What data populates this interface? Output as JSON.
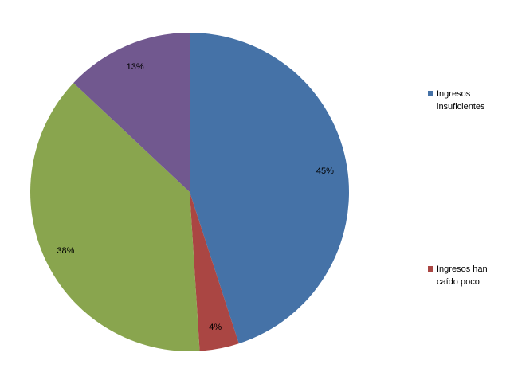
{
  "chart_data": {
    "type": "pie",
    "categories": [
      "Ingresos insuficientes",
      "Ingresos han caído poco",
      "",
      ""
    ],
    "values": [
      45,
      4,
      38,
      13
    ],
    "data_labels": [
      "45%",
      "4%",
      "38%",
      "13%"
    ],
    "colors": [
      "#4572A7",
      "#AA4643",
      "#89A54E",
      "#71588F"
    ],
    "start_angle_deg": 0,
    "direction": "clockwise",
    "legend": {
      "placement": "right",
      "entries": [
        {
          "label": "Ingresos insuficientes",
          "color": "#4572A7"
        },
        {
          "label": "Ingresos han caído poco",
          "color": "#AA4643"
        }
      ]
    }
  }
}
